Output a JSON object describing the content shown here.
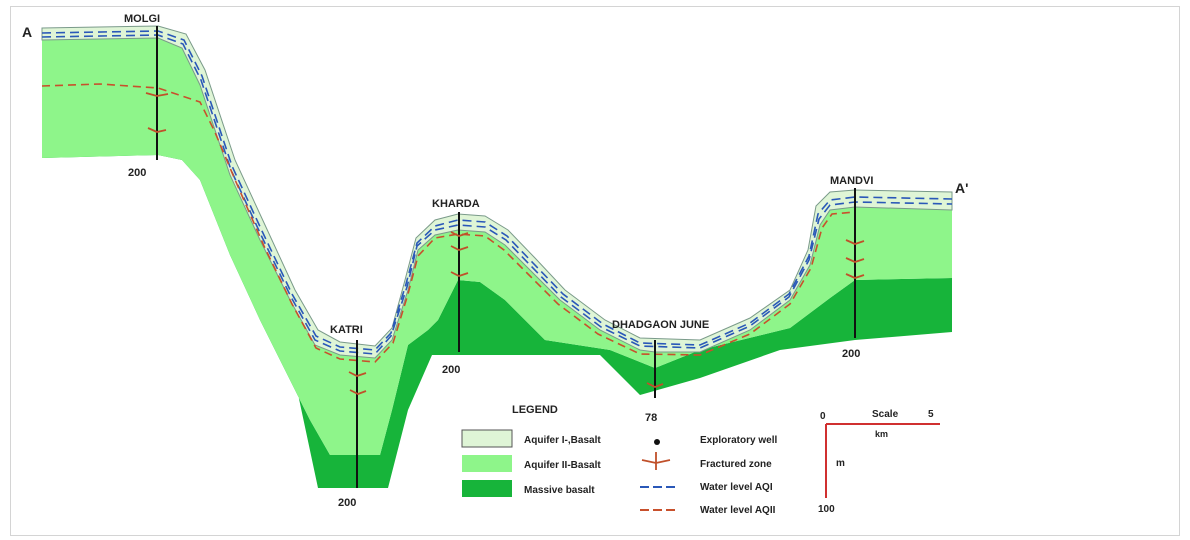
{
  "section": {
    "start_label": "A",
    "end_label": "A'"
  },
  "wells": [
    {
      "name": "MOLGI",
      "depth": "200"
    },
    {
      "name": "KATRI",
      "depth": "200"
    },
    {
      "name": "KHARDA",
      "depth": "200"
    },
    {
      "name": "DHADGAON JUNE",
      "depth": "78"
    },
    {
      "name": "MANDVI",
      "depth": "200"
    }
  ],
  "legend": {
    "title": "LEGEND",
    "units": [
      {
        "label": "Aquifer I-,Basalt",
        "color": "#dff5d6"
      },
      {
        "label": "Aquifer II-Basalt",
        "color": "#8ef58a"
      },
      {
        "label": "Massive basalt",
        "color": "#17b43a"
      }
    ],
    "symbols": [
      {
        "label": "Exploratory well",
        "icon": "dot-icon"
      },
      {
        "label": "Fractured zone",
        "icon": "fracture-icon"
      },
      {
        "label": "Water level AQI",
        "icon": "blue-dash-line-icon"
      },
      {
        "label": "Water level AQII",
        "icon": "red-dash-line-icon"
      }
    ]
  },
  "scale": {
    "h_start": "0",
    "h_label": "Scale",
    "h_end": "5",
    "h_unit": "km",
    "v_unit": "m",
    "v_end": "100"
  },
  "colors": {
    "aquifer_1": "#dff5d6",
    "aquifer_2": "#8ef58a",
    "massive_basalt": "#17b43a",
    "water_level_aq1": "#2a58b8",
    "water_level_aq2": "#c8502c",
    "well_line": "#111111"
  }
}
